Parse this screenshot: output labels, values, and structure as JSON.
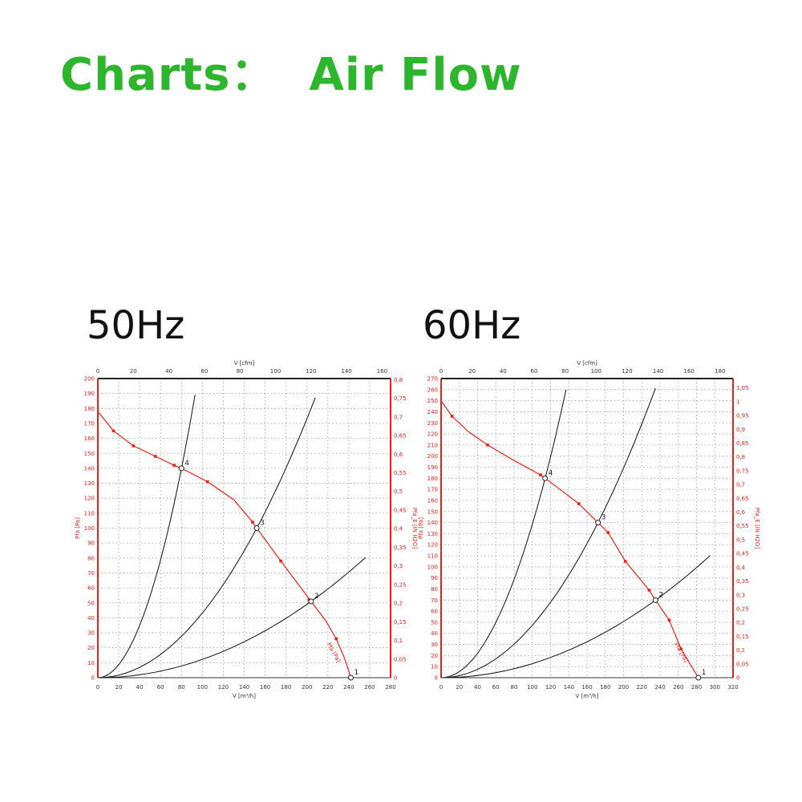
{
  "page": {
    "title": "Charts：  Air Flow",
    "title_color": "#2db52d"
  },
  "chart_data": [
    {
      "type": "line",
      "label": "50Hz",
      "xlabel": "V [m³/h]",
      "x2label": "V [cfm]",
      "ylabel": "Pfa [Pa]",
      "y2label": "Pfa_E [IN H2O]",
      "xlim": [
        0,
        280
      ],
      "xticks": [
        0,
        20,
        40,
        60,
        80,
        100,
        120,
        140,
        160,
        180,
        200,
        220,
        240,
        260,
        280
      ],
      "ylim": [
        0,
        200
      ],
      "ystep": 10,
      "x2ticks": [
        0,
        20,
        40,
        60,
        80,
        100,
        120,
        140,
        160
      ],
      "x2_factor": 0.5886,
      "y2ticks": [
        "0",
        "0,05",
        "0,1",
        "0,15",
        "0,2",
        "0,25",
        "0,3",
        "0,35",
        "0,4",
        "0,45",
        "0,5",
        "0,55",
        "0,6",
        "0,65",
        "0,7",
        "0,75",
        "0,8"
      ],
      "y2_max": 0.803,
      "grid": true,
      "fan_curve": {
        "name": "Pfa [Pa]",
        "color": "#e8221b",
        "x": [
          0,
          15,
          34,
          55,
          73,
          80,
          105,
          130,
          148,
          152,
          175,
          190,
          204,
          218,
          228,
          236,
          242
        ],
        "y": [
          178,
          165,
          155,
          148,
          142,
          140,
          131,
          119,
          104,
          100,
          78,
          64,
          51,
          38,
          26,
          13,
          0
        ],
        "markers_x": [
          15,
          34,
          55,
          73,
          105,
          148,
          175,
          202,
          228
        ],
        "markers_y": [
          165,
          155,
          148,
          142,
          131,
          104,
          78,
          52,
          26
        ]
      },
      "system_curves": [
        {
          "color": "#222222",
          "through": [
            80,
            140
          ],
          "x_end": 93
        },
        {
          "color": "#222222",
          "through": [
            152,
            100
          ],
          "x_end": 208
        },
        {
          "color": "#222222",
          "through": [
            204,
            51
          ],
          "x_end": 256
        }
      ],
      "operating_points": [
        {
          "label": "4",
          "x": 80,
          "y": 140
        },
        {
          "label": "3",
          "x": 152,
          "y": 100
        },
        {
          "label": "2",
          "x": 204,
          "y": 51
        },
        {
          "label": "1",
          "x": 242,
          "y": 0
        }
      ]
    },
    {
      "type": "line",
      "label": "60Hz",
      "xlabel": "V [m³/h]",
      "x2label": "V [cfm]",
      "ylabel": "Pfa [Pa]",
      "y2label": "Pfa_E [IN H2O]",
      "xlim": [
        0,
        320
      ],
      "xticks": [
        0,
        20,
        40,
        60,
        80,
        100,
        120,
        140,
        160,
        180,
        200,
        220,
        240,
        260,
        280,
        300,
        320
      ],
      "ylim": [
        0,
        270
      ],
      "ystep": 10,
      "x2ticks": [
        0,
        20,
        40,
        60,
        80,
        100,
        120,
        140,
        160,
        180
      ],
      "x2_factor": 0.5886,
      "y2ticks": [
        "0",
        "0,05",
        "0,1",
        "0,15",
        "0,2",
        "0,25",
        "0,3",
        "0,35",
        "0,4",
        "0,45",
        "0,5",
        "0,55",
        "0,6",
        "0,65",
        "0,7",
        "0,75",
        "0,8",
        "0,85",
        "0,9",
        "0,95",
        "1",
        "1,05"
      ],
      "y2_max": 1.084,
      "grid": true,
      "fan_curve": {
        "name": "Pfa [Pa]",
        "color": "#e8221b",
        "x": [
          0,
          12,
          30,
          51,
          80,
          109,
          114,
          135,
          151,
          172,
          183,
          202,
          228,
          235,
          250,
          263,
          282
        ],
        "y": [
          250,
          236,
          222,
          210,
          196,
          183,
          180,
          167,
          157,
          140,
          131,
          105,
          79,
          70,
          52,
          26,
          0
        ],
        "markers_x": [
          12,
          51,
          109,
          151,
          183,
          202,
          228,
          250,
          263
        ],
        "markers_y": [
          236,
          210,
          183,
          157,
          131,
          105,
          79,
          52,
          26
        ]
      },
      "system_curves": [
        {
          "color": "#222222",
          "through": [
            114,
            180
          ],
          "x_end": 137
        },
        {
          "color": "#222222",
          "through": [
            172,
            140
          ],
          "x_end": 235
        },
        {
          "color": "#222222",
          "through": [
            235,
            70
          ],
          "x_end": 295
        }
      ],
      "operating_points": [
        {
          "label": "4",
          "x": 114,
          "y": 180
        },
        {
          "label": "3",
          "x": 172,
          "y": 140
        },
        {
          "label": "2",
          "x": 235,
          "y": 70
        },
        {
          "label": "1",
          "x": 282,
          "y": 0
        }
      ]
    }
  ]
}
